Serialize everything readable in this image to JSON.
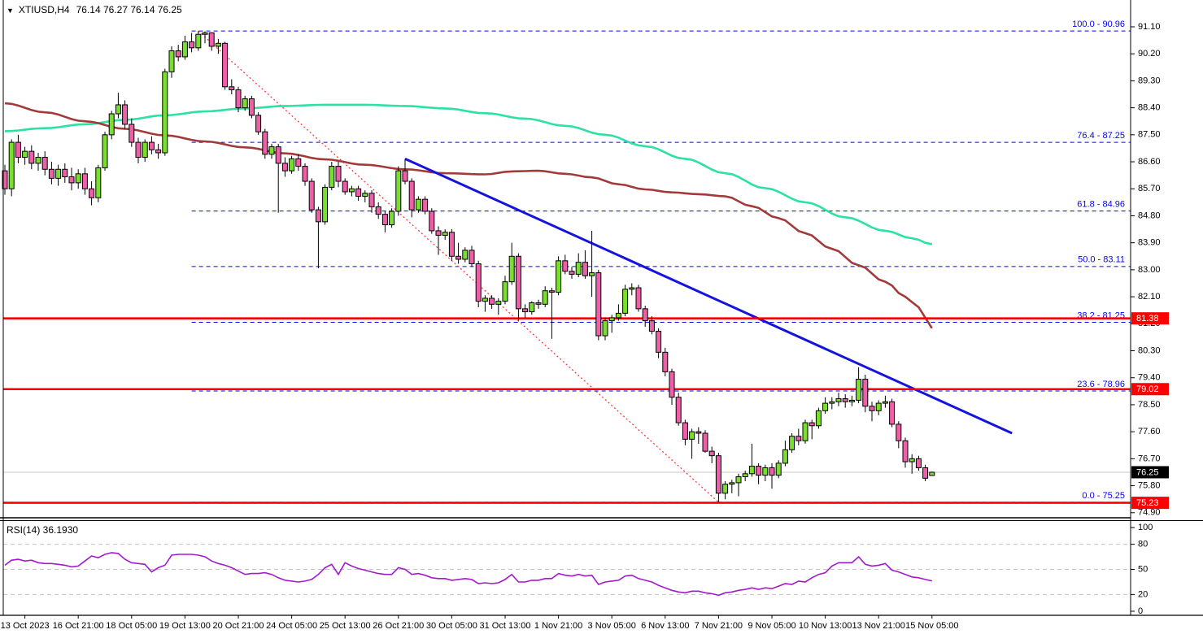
{
  "window": {
    "dropdown_icon": "▼",
    "title_symbol": "XTIUSD,H4",
    "title_ohlc": "76.14 76.27 76.14 76.25"
  },
  "colors": {
    "background": "#ffffff",
    "bull_candle": "#7ade2c",
    "bear_candle": "#ef5fa7",
    "candle_outline": "#000000",
    "ma_spring_green": "#2de0a5",
    "ma_brown": "#a33a3a",
    "trendline_blue": "#1414dc",
    "fib_blue": "#0000ff",
    "red_line": "#ff0000",
    "fib_diagonal_red": "#ff3b3b",
    "bid_line_gray": "#c9c9c9",
    "rsi_purple": "#a31acb",
    "rsi_grid_gray": "#c3c3c3",
    "axis_text": "#000000",
    "badge_text": "#ffffff",
    "badge_black": "#000000",
    "frame": "#000000"
  },
  "chart_data": {
    "type": "candlestick",
    "symbol": "XTIUSD",
    "timeframe": "H4",
    "title": "XTIUSD,H4 76.14 76.27 76.14 76.25",
    "current_bar": {
      "open": 76.14,
      "high": 76.27,
      "low": 76.14,
      "close": 76.25
    },
    "price_axis": {
      "min": 74.9,
      "max": 91.1,
      "step": 0.9,
      "labels": [
        "91.10",
        "90.20",
        "89.30",
        "88.40",
        "87.50",
        "86.60",
        "85.70",
        "84.80",
        "83.90",
        "83.00",
        "82.10",
        "81.20",
        "80.30",
        "79.40",
        "78.50",
        "77.60",
        "76.70",
        "75.80",
        "74.90"
      ]
    },
    "time_axis": {
      "labels": [
        {
          "bar": 3,
          "label": "13 Oct 2023"
        },
        {
          "bar": 11,
          "label": "16 Oct 21:00"
        },
        {
          "bar": 19,
          "label": "18 Oct 05:00"
        },
        {
          "bar": 27,
          "label": "19 Oct 13:00"
        },
        {
          "bar": 35,
          "label": "20 Oct 21:00"
        },
        {
          "bar": 43,
          "label": "24 Oct 05:00"
        },
        {
          "bar": 51,
          "label": "25 Oct 13:00"
        },
        {
          "bar": 59,
          "label": "26 Oct 21:00"
        },
        {
          "bar": 67,
          "label": "30 Oct 05:00"
        },
        {
          "bar": 75,
          "label": "31 Oct 13:00"
        },
        {
          "bar": 83,
          "label": "1 Nov 21:00"
        },
        {
          "bar": 91,
          "label": "3 Nov 05:00"
        },
        {
          "bar": 99,
          "label": "6 Nov 13:00"
        },
        {
          "bar": 107,
          "label": "7 Nov 21:00"
        },
        {
          "bar": 115,
          "label": "9 Nov 05:00"
        },
        {
          "bar": 123,
          "label": "10 Nov 13:00"
        },
        {
          "bar": 131,
          "label": "13 Nov 21:00"
        },
        {
          "bar": 139,
          "label": "15 Nov 05:00"
        }
      ]
    },
    "candles": [
      [
        86.3,
        86.5,
        85.5,
        85.7
      ],
      [
        85.7,
        87.35,
        85.45,
        87.25
      ],
      [
        87.25,
        87.5,
        86.55,
        86.75
      ],
      [
        86.75,
        87.1,
        86.5,
        86.95
      ],
      [
        86.95,
        87.15,
        86.35,
        86.55
      ],
      [
        86.55,
        86.9,
        86.3,
        86.75
      ],
      [
        86.75,
        86.95,
        86.15,
        86.35
      ],
      [
        86.35,
        86.6,
        85.85,
        86.05
      ],
      [
        86.05,
        86.5,
        85.8,
        86.35
      ],
      [
        86.35,
        86.55,
        85.9,
        86.1
      ],
      [
        86.1,
        86.4,
        85.65,
        85.9
      ],
      [
        85.9,
        86.35,
        85.7,
        86.2
      ],
      [
        86.2,
        86.4,
        85.5,
        85.7
      ],
      [
        85.7,
        85.95,
        85.15,
        85.4
      ],
      [
        85.4,
        86.5,
        85.25,
        86.4
      ],
      [
        86.4,
        87.6,
        86.3,
        87.5
      ],
      [
        87.5,
        88.3,
        87.35,
        88.2
      ],
      [
        88.2,
        88.9,
        88.05,
        88.5
      ],
      [
        88.5,
        88.65,
        87.7,
        87.85
      ],
      [
        87.85,
        88.05,
        87.1,
        87.25
      ],
      [
        87.25,
        87.4,
        86.55,
        86.75
      ],
      [
        86.75,
        87.35,
        86.6,
        87.25
      ],
      [
        87.25,
        87.45,
        86.85,
        87.0
      ],
      [
        87.0,
        87.2,
        86.7,
        86.9
      ],
      [
        86.9,
        89.7,
        86.8,
        89.6
      ],
      [
        89.6,
        90.45,
        89.4,
        90.3
      ],
      [
        90.3,
        90.5,
        89.95,
        90.1
      ],
      [
        90.1,
        90.8,
        90.0,
        90.6
      ],
      [
        90.6,
        90.9,
        90.25,
        90.4
      ],
      [
        90.4,
        90.96,
        90.3,
        90.85
      ],
      [
        90.85,
        90.95,
        90.55,
        90.9
      ],
      [
        90.9,
        90.92,
        90.3,
        90.45
      ],
      [
        90.45,
        90.7,
        90.2,
        90.55
      ],
      [
        90.55,
        90.6,
        89.0,
        89.1
      ],
      [
        89.1,
        89.35,
        88.85,
        89.0
      ],
      [
        89.0,
        89.1,
        88.25,
        88.4
      ],
      [
        88.4,
        88.8,
        88.3,
        88.7
      ],
      [
        88.7,
        88.8,
        88.05,
        88.15
      ],
      [
        88.15,
        88.25,
        87.5,
        87.6
      ],
      [
        87.6,
        87.7,
        86.7,
        86.85
      ],
      [
        86.85,
        87.2,
        86.7,
        87.1
      ],
      [
        87.1,
        87.2,
        84.9,
        86.55
      ],
      [
        86.55,
        86.75,
        86.1,
        86.3
      ],
      [
        86.3,
        86.8,
        86.2,
        86.7
      ],
      [
        86.7,
        86.85,
        86.3,
        86.45
      ],
      [
        86.45,
        86.55,
        85.8,
        85.95
      ],
      [
        85.95,
        86.05,
        84.9,
        85.0
      ],
      [
        85.0,
        85.1,
        83.05,
        84.6
      ],
      [
        84.6,
        85.85,
        84.5,
        85.75
      ],
      [
        85.75,
        86.6,
        85.65,
        86.45
      ],
      [
        86.45,
        86.6,
        85.75,
        85.95
      ],
      [
        85.95,
        86.05,
        85.5,
        85.6
      ],
      [
        85.6,
        85.8,
        85.45,
        85.7
      ],
      [
        85.7,
        85.8,
        85.3,
        85.45
      ],
      [
        85.45,
        85.65,
        85.25,
        85.55
      ],
      [
        85.55,
        85.65,
        84.9,
        85.1
      ],
      [
        85.1,
        85.25,
        84.7,
        84.85
      ],
      [
        84.85,
        84.95,
        84.25,
        84.5
      ],
      [
        84.5,
        85.05,
        84.4,
        84.95
      ],
      [
        84.95,
        86.45,
        84.8,
        86.3
      ],
      [
        86.3,
        86.7,
        85.85,
        85.95
      ],
      [
        85.95,
        86.05,
        84.75,
        85.0
      ],
      [
        85.0,
        85.45,
        84.9,
        85.35
      ],
      [
        85.35,
        85.45,
        84.85,
        84.95
      ],
      [
        84.95,
        85.05,
        84.2,
        84.3
      ],
      [
        84.3,
        84.45,
        83.5,
        84.15
      ],
      [
        84.15,
        84.35,
        84.0,
        84.25
      ],
      [
        84.25,
        84.35,
        83.3,
        83.45
      ],
      [
        83.45,
        83.9,
        83.2,
        83.35
      ],
      [
        83.35,
        83.75,
        83.25,
        83.65
      ],
      [
        83.65,
        83.8,
        83.1,
        83.2
      ],
      [
        83.2,
        83.3,
        81.75,
        81.95
      ],
      [
        81.95,
        82.15,
        81.6,
        82.05
      ],
      [
        82.05,
        82.15,
        81.7,
        81.85
      ],
      [
        81.85,
        82.05,
        81.5,
        81.95
      ],
      [
        81.95,
        82.8,
        81.85,
        82.6
      ],
      [
        82.6,
        83.9,
        82.5,
        83.45
      ],
      [
        83.45,
        83.55,
        81.3,
        81.7
      ],
      [
        81.7,
        81.85,
        81.4,
        81.6
      ],
      [
        81.6,
        81.95,
        81.5,
        81.9
      ],
      [
        81.9,
        82.0,
        81.7,
        81.85
      ],
      [
        81.85,
        82.45,
        81.75,
        82.3
      ],
      [
        82.3,
        82.4,
        80.7,
        82.25
      ],
      [
        82.25,
        83.45,
        82.15,
        83.3
      ],
      [
        83.3,
        83.5,
        82.85,
        82.95
      ],
      [
        82.95,
        83.1,
        82.7,
        82.85
      ],
      [
        82.85,
        83.55,
        82.75,
        83.25
      ],
      [
        83.25,
        83.65,
        82.7,
        82.8
      ],
      [
        82.8,
        84.3,
        82.1,
        82.9
      ],
      [
        82.9,
        83.0,
        80.65,
        80.8
      ],
      [
        80.8,
        81.4,
        80.65,
        81.3
      ],
      [
        81.3,
        81.5,
        80.9,
        81.4
      ],
      [
        81.4,
        81.85,
        81.3,
        81.55
      ],
      [
        81.55,
        82.5,
        81.45,
        82.35
      ],
      [
        82.35,
        82.55,
        82.15,
        82.4
      ],
      [
        82.4,
        82.5,
        81.6,
        81.7
      ],
      [
        81.7,
        81.8,
        81.1,
        81.3
      ],
      [
        81.3,
        81.45,
        80.85,
        80.95
      ],
      [
        80.95,
        81.05,
        80.05,
        80.25
      ],
      [
        80.25,
        80.4,
        79.45,
        79.6
      ],
      [
        79.6,
        79.7,
        78.5,
        78.75
      ],
      [
        78.75,
        78.9,
        77.8,
        77.9
      ],
      [
        77.9,
        78.0,
        77.15,
        77.35
      ],
      [
        77.35,
        77.7,
        76.7,
        77.6
      ],
      [
        77.6,
        77.75,
        77.2,
        77.55
      ],
      [
        77.55,
        77.65,
        76.9,
        76.95
      ],
      [
        76.95,
        77.1,
        76.55,
        76.8
      ],
      [
        76.8,
        76.9,
        75.25,
        75.55
      ],
      [
        75.55,
        75.95,
        75.35,
        75.85
      ],
      [
        75.85,
        76.0,
        75.55,
        75.9
      ],
      [
        75.9,
        76.2,
        75.45,
        76.1
      ],
      [
        76.1,
        76.3,
        75.95,
        76.2
      ],
      [
        76.2,
        77.2,
        76.1,
        76.45
      ],
      [
        76.45,
        76.55,
        75.85,
        76.15
      ],
      [
        76.15,
        76.5,
        75.95,
        76.4
      ],
      [
        76.4,
        76.55,
        75.7,
        76.15
      ],
      [
        76.15,
        76.65,
        76.05,
        76.55
      ],
      [
        76.55,
        77.3,
        76.45,
        77.0
      ],
      [
        77.0,
        77.55,
        76.9,
        77.45
      ],
      [
        77.45,
        77.7,
        77.15,
        77.3
      ],
      [
        77.3,
        78.0,
        77.2,
        77.9
      ],
      [
        77.9,
        78.0,
        77.35,
        77.8
      ],
      [
        77.8,
        78.4,
        77.7,
        78.3
      ],
      [
        78.3,
        78.75,
        78.2,
        78.55
      ],
      [
        78.55,
        78.75,
        78.35,
        78.6
      ],
      [
        78.6,
        78.9,
        78.45,
        78.7
      ],
      [
        78.7,
        78.85,
        78.4,
        78.6
      ],
      [
        78.6,
        78.8,
        78.45,
        78.65
      ],
      [
        78.65,
        79.75,
        78.55,
        79.35
      ],
      [
        79.35,
        79.5,
        78.25,
        78.45
      ],
      [
        78.45,
        78.6,
        77.95,
        78.3
      ],
      [
        78.3,
        78.65,
        78.15,
        78.55
      ],
      [
        78.55,
        78.8,
        78.4,
        78.6
      ],
      [
        78.6,
        78.7,
        77.75,
        77.85
      ],
      [
        77.85,
        77.95,
        77.05,
        77.3
      ],
      [
        77.3,
        77.4,
        76.4,
        76.6
      ],
      [
        76.6,
        76.85,
        76.2,
        76.7
      ],
      [
        76.7,
        76.8,
        76.3,
        76.4
      ],
      [
        76.4,
        76.5,
        75.95,
        76.05
      ],
      [
        76.14,
        76.27,
        76.14,
        76.25
      ]
    ],
    "overlays": {
      "ma_spring_green": {
        "name": "long moving average",
        "points": [
          [
            0,
            87.62
          ],
          [
            6,
            87.72
          ],
          [
            12,
            87.85
          ],
          [
            18,
            88.0
          ],
          [
            24,
            88.15
          ],
          [
            30,
            88.28
          ],
          [
            36,
            88.38
          ],
          [
            42,
            88.46
          ],
          [
            48,
            88.5
          ],
          [
            54,
            88.5
          ],
          [
            60,
            88.46
          ],
          [
            66,
            88.38
          ],
          [
            72,
            88.22
          ],
          [
            78,
            88.04
          ],
          [
            84,
            87.8
          ],
          [
            90,
            87.5
          ],
          [
            96,
            87.12
          ],
          [
            102,
            86.7
          ],
          [
            108,
            86.22
          ],
          [
            114,
            85.72
          ],
          [
            120,
            85.25
          ],
          [
            126,
            84.75
          ],
          [
            132,
            84.3
          ],
          [
            136,
            84.05
          ],
          [
            139,
            83.85
          ]
        ]
      },
      "ma_brown": {
        "name": "short moving average",
        "points": [
          [
            0,
            88.55
          ],
          [
            6,
            88.25
          ],
          [
            12,
            87.95
          ],
          [
            18,
            87.7
          ],
          [
            24,
            87.48
          ],
          [
            30,
            87.28
          ],
          [
            36,
            87.08
          ],
          [
            42,
            86.88
          ],
          [
            48,
            86.68
          ],
          [
            54,
            86.5
          ],
          [
            60,
            86.35
          ],
          [
            66,
            86.22
          ],
          [
            72,
            86.18
          ],
          [
            76,
            86.28
          ],
          [
            80,
            86.3
          ],
          [
            84,
            86.2
          ],
          [
            88,
            86.08
          ],
          [
            92,
            85.85
          ],
          [
            96,
            85.68
          ],
          [
            100,
            85.58
          ],
          [
            104,
            85.52
          ],
          [
            108,
            85.45
          ],
          [
            112,
            85.12
          ],
          [
            116,
            84.72
          ],
          [
            120,
            84.22
          ],
          [
            124,
            83.7
          ],
          [
            128,
            83.15
          ],
          [
            132,
            82.6
          ],
          [
            135,
            82.1
          ],
          [
            137,
            81.75
          ],
          [
            139,
            81.05
          ]
        ]
      },
      "trendline_blue": {
        "from_bar": 60,
        "from_price": 86.7,
        "to_bar": 151,
        "to_price": 77.55
      },
      "fib_diagonal_red_dotted": {
        "from_bar": 29,
        "from_price": 90.96,
        "to_bar": 107,
        "to_price": 75.25
      },
      "fib_start_bar": 28,
      "fib_levels": [
        {
          "label": "100.0 - 90.96",
          "price": 90.96
        },
        {
          "label": "76.4 - 87.25",
          "price": 87.25
        },
        {
          "label": "61.8 - 84.96",
          "price": 84.96
        },
        {
          "label": "50.0 - 83.11",
          "price": 83.11
        },
        {
          "label": "38.2 - 81.25",
          "price": 81.25
        },
        {
          "label": "23.6 - 78.96",
          "price": 78.96
        },
        {
          "label": "0.0 - 75.25",
          "price": 75.25
        }
      ],
      "red_hlines": [
        81.38,
        79.02,
        75.23
      ],
      "bid_line": 76.25
    },
    "axis_badges": [
      {
        "value": "81.38",
        "bg": "red"
      },
      {
        "value": "79.02",
        "bg": "red"
      },
      {
        "value": "76.25",
        "bg": "black"
      },
      {
        "value": "75.23",
        "bg": "red"
      }
    ],
    "rsi": {
      "label": "RSI(14) 36.1930",
      "period": 14,
      "value": 36.193,
      "levels": [
        80,
        50,
        20
      ],
      "scale_labels": [
        "100",
        "80",
        "50",
        "20",
        "0"
      ],
      "values": [
        55,
        61,
        62,
        60,
        61,
        58,
        57,
        57,
        56,
        55,
        53,
        54,
        60,
        66,
        64,
        68,
        70,
        69,
        62,
        58,
        57,
        56,
        47,
        52,
        55,
        67,
        68,
        68,
        68,
        67,
        65,
        60,
        57,
        55,
        52,
        48,
        44,
        45,
        45,
        46,
        44,
        40,
        37,
        36,
        35,
        36,
        38,
        44,
        52,
        56,
        44,
        58,
        54,
        51,
        49,
        47,
        45,
        44,
        44,
        52,
        50,
        44,
        45,
        43,
        40,
        39,
        39,
        37,
        38,
        39,
        38,
        33,
        34,
        33,
        34,
        38,
        44,
        35,
        35,
        37,
        37,
        39,
        39,
        45,
        43,
        42,
        44,
        42,
        43,
        32,
        35,
        36,
        37,
        42,
        43,
        39,
        37,
        35,
        31,
        28,
        25,
        23,
        22,
        24,
        24,
        22,
        21,
        19,
        22,
        23,
        25,
        26,
        28,
        26,
        28,
        27,
        30,
        33,
        32,
        36,
        35,
        40,
        44,
        46,
        54,
        58,
        58,
        58,
        65,
        56,
        54,
        55,
        57,
        49,
        47,
        44,
        41,
        40,
        38,
        36.2
      ]
    }
  }
}
